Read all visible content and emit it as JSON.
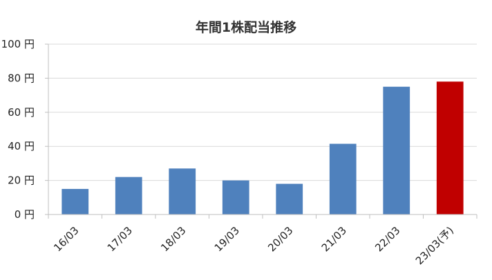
{
  "chart_data": {
    "type": "bar",
    "title": "年間1株配当推移",
    "categories": [
      "16/03",
      "17/03",
      "18/03",
      "19/03",
      "20/03",
      "21/03",
      "22/03",
      "23/03(予)"
    ],
    "values": [
      15,
      22,
      27,
      20,
      18,
      41.5,
      75,
      78
    ],
    "ylim": [
      0,
      100
    ],
    "yticks": [
      0,
      20,
      40,
      60,
      80,
      100
    ],
    "ytick_labels": [
      "0 円",
      "20 円",
      "40 円",
      "60 円",
      "80 円",
      "100 円"
    ],
    "grid": true,
    "legend": "none",
    "colors": {
      "actual": "#4f81bd",
      "forecast": "#c00000",
      "grid": "#d9d9d9",
      "axis": "#bfbfbf"
    },
    "forecast_index": 7
  }
}
